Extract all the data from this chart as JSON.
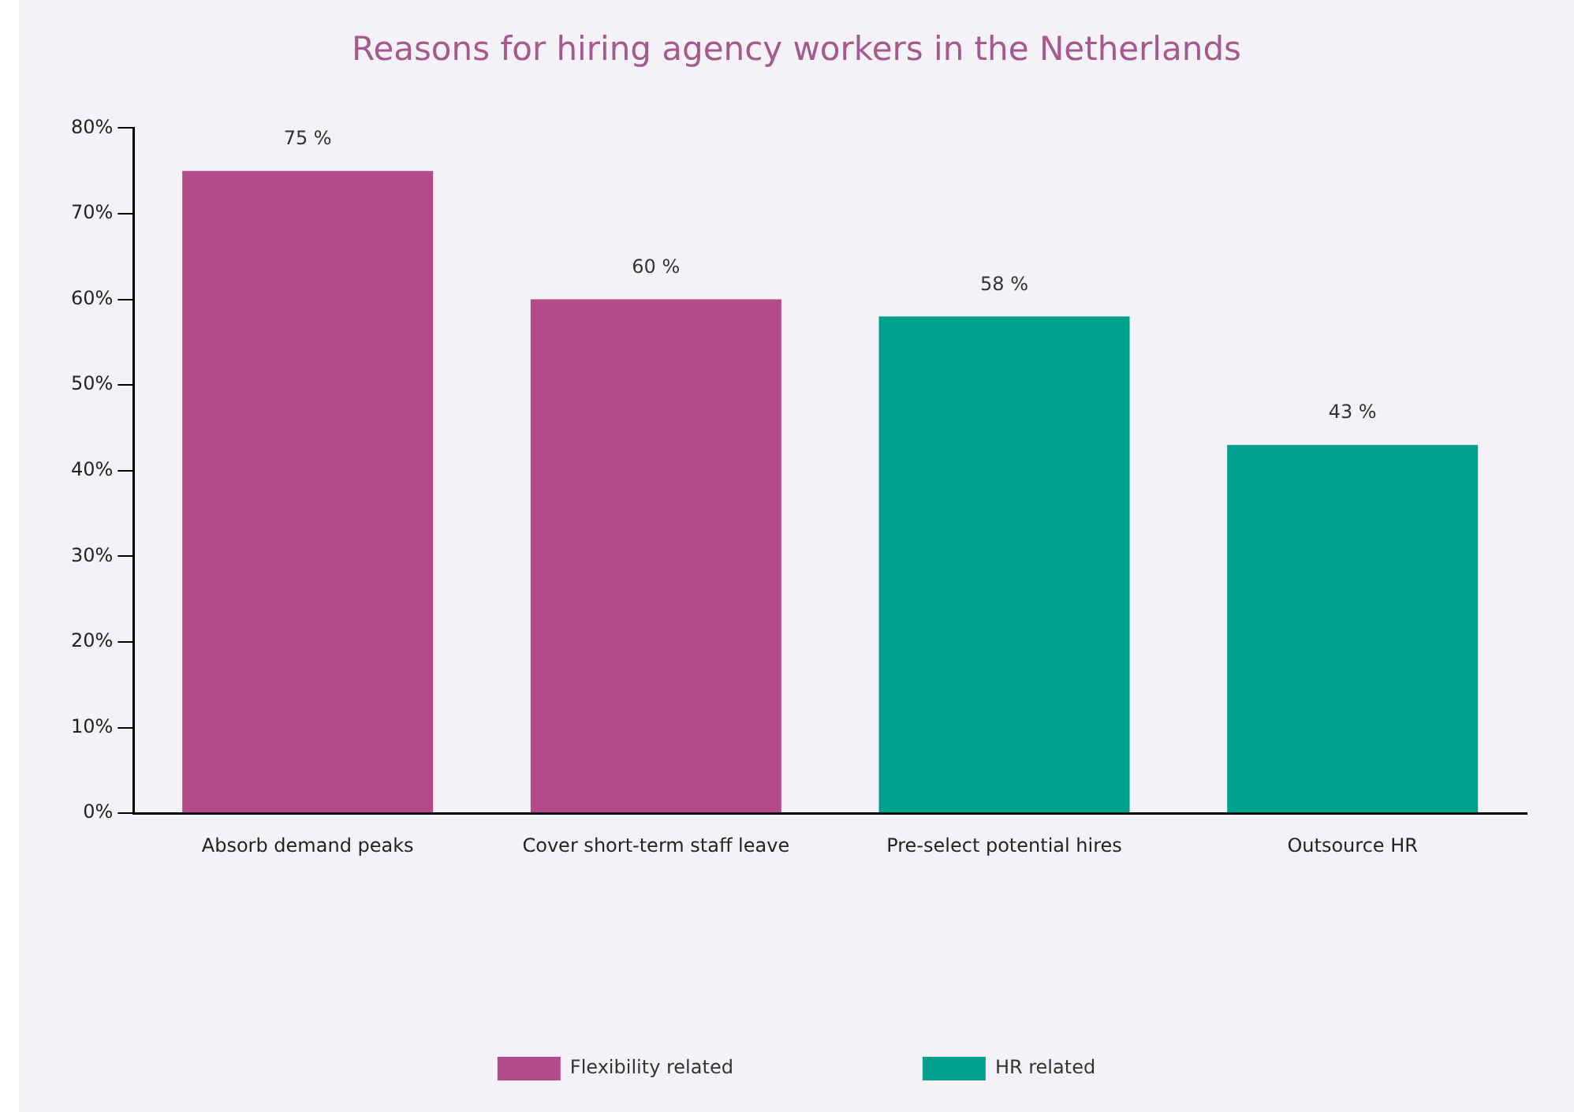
{
  "chart_data": {
    "type": "bar",
    "title": "Reasons for hiring agency workers in the Netherlands",
    "categories": [
      "Absorb demand peaks",
      "Cover short-term staff leave",
      "Pre-select potential hires",
      "Outsource HR"
    ],
    "series": [
      {
        "name": "Flexibility related",
        "color": "#b34b8a",
        "values": [
          75,
          60,
          null,
          null
        ],
        "value_labels": [
          "75 %",
          "60 %",
          null,
          null
        ]
      },
      {
        "name": "HR related",
        "color": "#00a08f",
        "values": [
          null,
          null,
          58,
          43
        ],
        "value_labels": [
          null,
          null,
          "58 %",
          "43 %"
        ]
      }
    ],
    "ylim": [
      0,
      80
    ],
    "yticks": [
      {
        "value": 0,
        "label": "0%"
      },
      {
        "value": 10,
        "label": "10%"
      },
      {
        "value": 20,
        "label": "20%"
      },
      {
        "value": 30,
        "label": "30%"
      },
      {
        "value": 40,
        "label": "40%"
      },
      {
        "value": 50,
        "label": "50%"
      },
      {
        "value": 60,
        "label": "60%"
      },
      {
        "value": 70,
        "label": "70%"
      },
      {
        "value": 80,
        "label": "80%"
      }
    ],
    "grid": false,
    "legend": "bottom"
  }
}
